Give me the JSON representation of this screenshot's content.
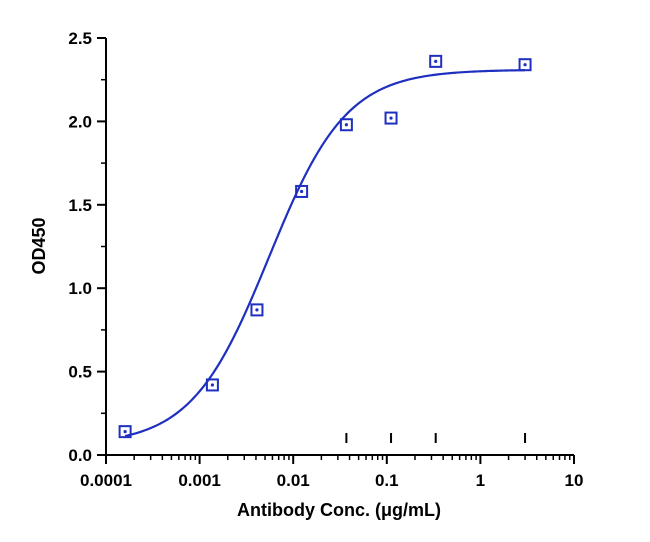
{
  "chart_data": {
    "type": "scatter",
    "xlabel": "Antibody Conc. (μg/mL)",
    "ylabel": "OD450",
    "x_scale": "log",
    "xlim": [
      0.0001,
      10
    ],
    "ylim": [
      0,
      2.5
    ],
    "x_ticks": [
      "0.0001",
      "0.001",
      "0.01",
      "0.1",
      "1",
      "10"
    ],
    "y_ticks": [
      "0.0",
      "0.5",
      "1.0",
      "1.5",
      "2.0",
      "2.5"
    ],
    "grid": false,
    "series": [
      {
        "marker": "open-square",
        "color": "#1f2fbf",
        "x": [
          0.00016,
          0.00137,
          0.0041,
          0.0123,
          0.037,
          0.111,
          0.333,
          3.0
        ],
        "y": [
          0.14,
          0.42,
          0.87,
          1.58,
          1.98,
          2.02,
          2.36,
          2.34
        ]
      }
    ],
    "fit_curve": {
      "type": "4PL",
      "color": "#1f2fbf",
      "bottom": 0.06,
      "top": 2.31,
      "ec50": 0.0055,
      "hill": 1.05,
      "x_range": [
        0.00016,
        3.0
      ]
    },
    "error_marks_x": [
      0.037,
      0.111,
      0.333,
      3.0
    ]
  }
}
